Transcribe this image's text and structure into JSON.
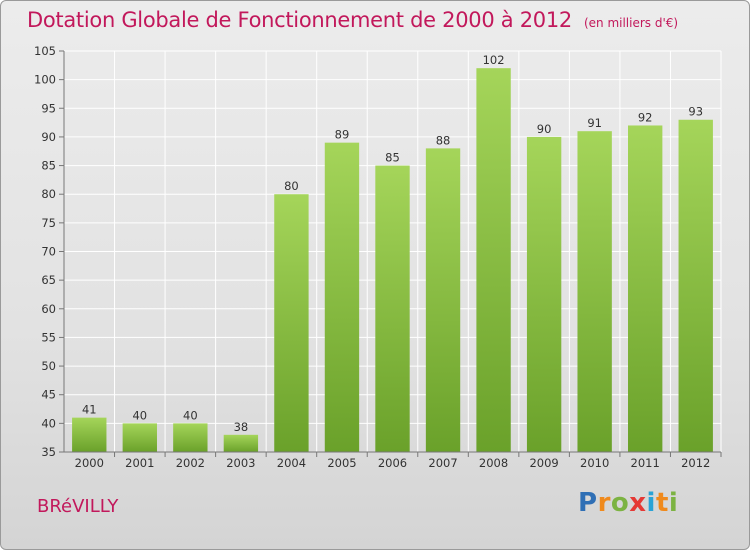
{
  "header": {
    "title": "Dotation Globale de Fonctionnement de 2000 à 2012",
    "subtitle": "(en milliers d'€)"
  },
  "footer": {
    "commune": "BRéVILLY",
    "logo_letters": [
      "P",
      "r",
      "o",
      "x",
      "i",
      "t",
      "i"
    ],
    "logo_colors": [
      "#2f6fb5",
      "#f08a1c",
      "#7cb342",
      "#e53935",
      "#29a3d6",
      "#f08a1c",
      "#7cb342"
    ]
  },
  "colors": {
    "accent": "#c2185b",
    "bar_light": "#a5d55a",
    "bar_dark": "#6aa12a"
  },
  "chart_data": {
    "type": "bar",
    "title": "Dotation Globale de Fonctionnement de 2000 à 2012",
    "subtitle": "(en milliers d'€)",
    "categories": [
      "2000",
      "2001",
      "2002",
      "2003",
      "2004",
      "2005",
      "2006",
      "2007",
      "2008",
      "2009",
      "2010",
      "2011",
      "2012"
    ],
    "values": [
      41,
      40,
      40,
      38,
      80,
      89,
      85,
      88,
      102,
      90,
      91,
      92,
      93
    ],
    "ylim": [
      35,
      105
    ],
    "yticks": [
      35,
      40,
      45,
      50,
      55,
      60,
      65,
      70,
      75,
      80,
      85,
      90,
      95,
      100,
      105
    ],
    "grid": true,
    "xlabel": "",
    "ylabel": ""
  }
}
